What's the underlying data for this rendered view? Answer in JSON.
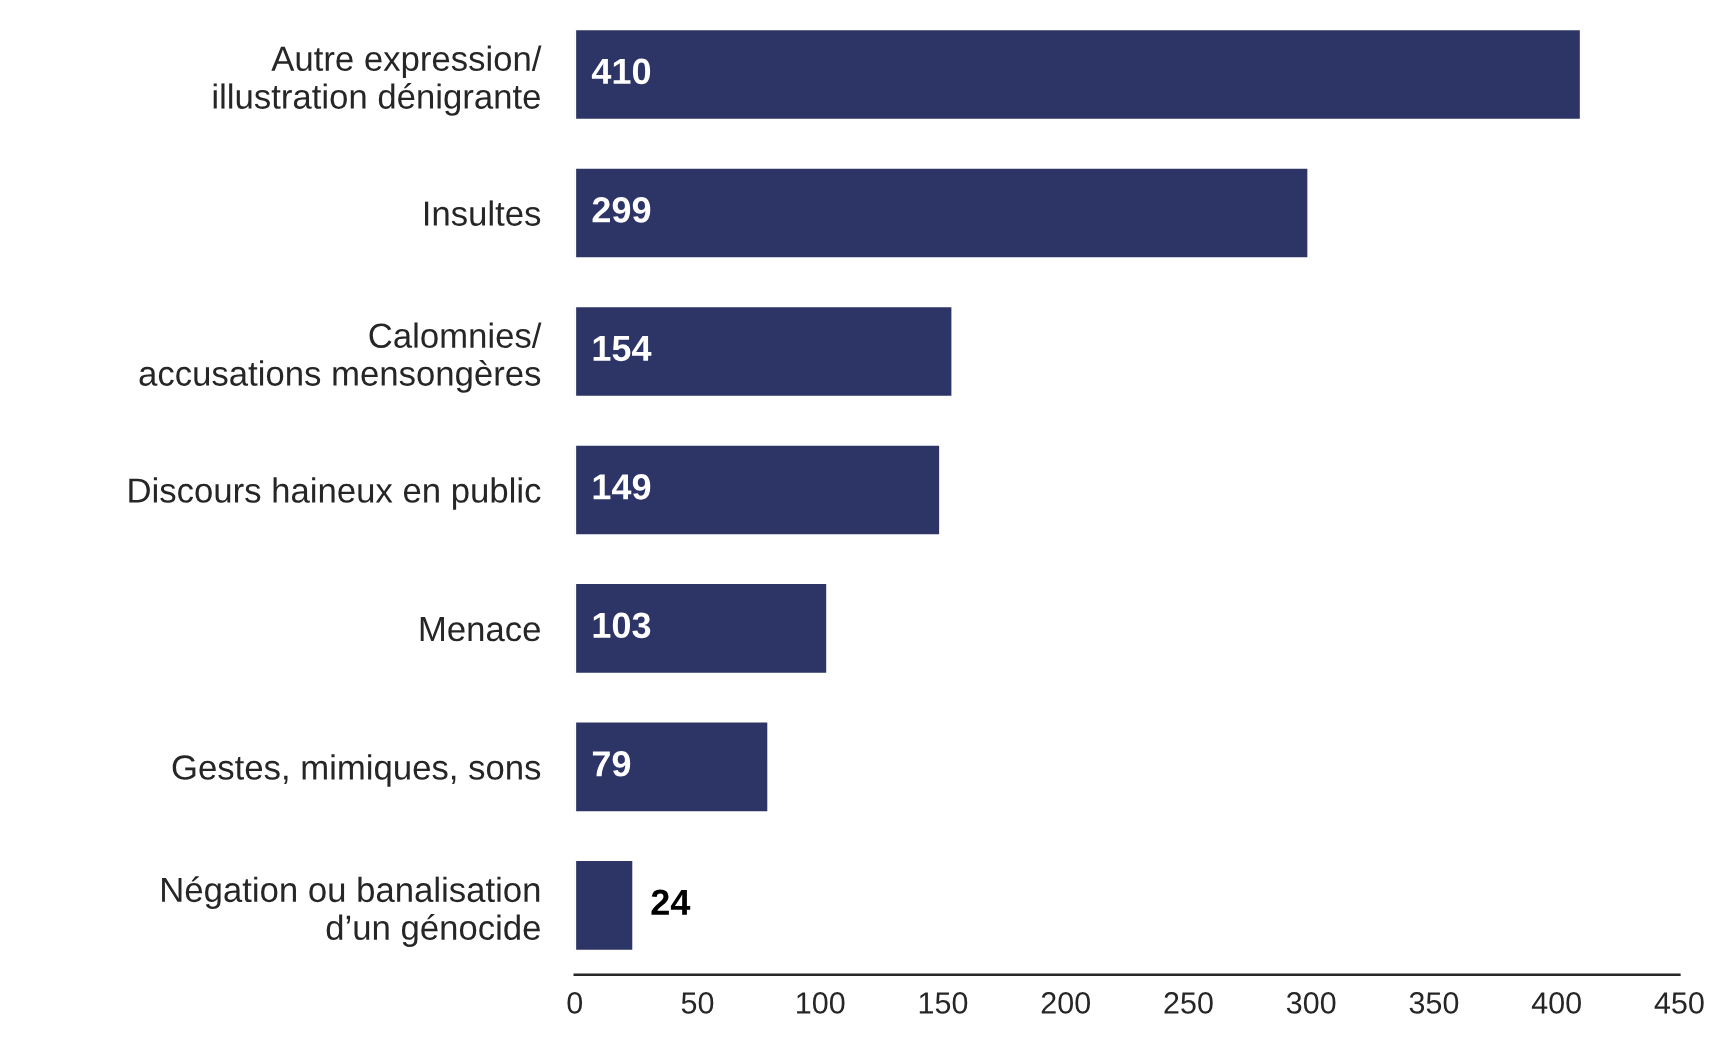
{
  "chart_data": {
    "type": "bar",
    "orientation": "horizontal",
    "categories": [
      "Autre expression/\nillustration dénigrante",
      "Insultes",
      "Calomnies/\naccusations mensongères",
      "Discours haineux en public",
      "Menace",
      "Gestes, mimiques, sons",
      "Négation ou banalisation\nd’un génocide"
    ],
    "values": [
      410,
      299,
      154,
      149,
      103,
      79,
      24
    ],
    "color": "#2d3566",
    "xlim": [
      0,
      450
    ],
    "xticks": [
      0,
      50,
      100,
      150,
      200,
      250,
      300,
      350,
      400,
      450
    ],
    "data_labels": true,
    "grid": false,
    "legend": false
  }
}
